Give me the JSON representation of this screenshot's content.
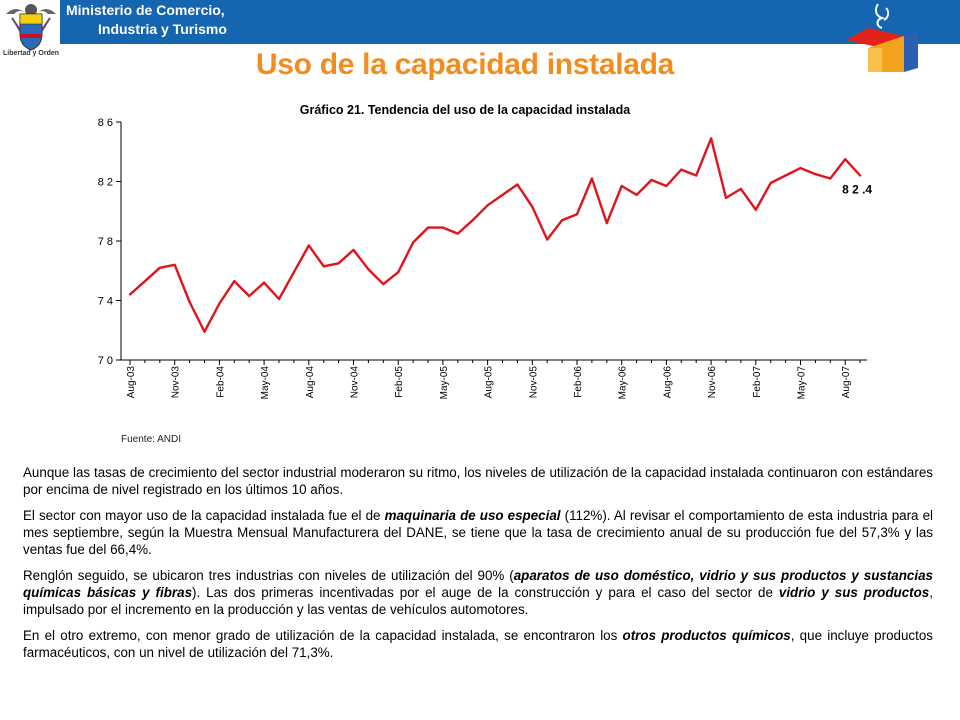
{
  "header": {
    "ministry_line1": "Ministerio de Comercio,",
    "ministry_line2": "Industria y Turismo",
    "crest_caption": "Libertad y Orden",
    "bar_color": "#1565b0"
  },
  "title": "Uso de la capacidad instalada",
  "chart": {
    "title": "Gráfico 21.  Tendencia del uso de la capacidad instalada",
    "source": "Fuente: ANDI"
  },
  "chart_data": {
    "type": "line",
    "title": "Gráfico 21.  Tendencia del uso de la capacidad instalada",
    "ylim": [
      70,
      86
    ],
    "yticks": [
      70,
      74,
      78,
      82,
      86
    ],
    "ytick_labels": [
      "7 0",
      "7 4",
      "7 8",
      "8 2",
      "8 6"
    ],
    "x_tick_labels": [
      "Aug-03",
      "Nov-03",
      "Feb-04",
      "May-04",
      "Aug-04",
      "Nov-04",
      "Feb-05",
      "May-05",
      "Aug-05",
      "Nov-05",
      "Feb-06",
      "May-06",
      "Aug-06",
      "Nov-06",
      "Feb-07",
      "May-07",
      "Aug-07"
    ],
    "x": [
      "Aug-03",
      "Sep-03",
      "Oct-03",
      "Nov-03",
      "Dec-03",
      "Jan-04",
      "Feb-04",
      "Mar-04",
      "Apr-04",
      "May-04",
      "Jun-04",
      "Jul-04",
      "Aug-04",
      "Sep-04",
      "Oct-04",
      "Nov-04",
      "Dec-04",
      "Jan-05",
      "Feb-05",
      "Mar-05",
      "Apr-05",
      "May-05",
      "Jun-05",
      "Jul-05",
      "Aug-05",
      "Sep-05",
      "Oct-05",
      "Nov-05",
      "Dec-05",
      "Jan-06",
      "Feb-06",
      "Mar-06",
      "Apr-06",
      "May-06",
      "Jun-06",
      "Jul-06",
      "Aug-06",
      "Sep-06",
      "Oct-06",
      "Nov-06",
      "Dec-06",
      "Jan-07",
      "Feb-07",
      "Mar-07",
      "Apr-07",
      "May-07",
      "Jun-07",
      "Jul-07",
      "Aug-07",
      "Sep-07"
    ],
    "series": [
      {
        "name": "",
        "color": "#e0151b",
        "values": [
          74.4,
          75.3,
          76.2,
          76.4,
          73.9,
          71.9,
          73.8,
          75.3,
          74.3,
          75.2,
          74.1,
          75.9,
          77.7,
          76.3,
          76.5,
          77.4,
          76.1,
          75.1,
          75.9,
          77.9,
          78.9,
          78.9,
          78.5,
          79.4,
          80.4,
          81.1,
          81.8,
          80.3,
          78.1,
          79.4,
          79.8,
          82.2,
          79.2,
          81.7,
          81.1,
          82.1,
          81.7,
          82.8,
          82.4,
          84.9,
          80.9,
          81.5,
          80.1,
          81.9,
          82.4,
          82.9,
          82.5,
          82.2,
          83.5,
          82.4
        ]
      }
    ],
    "last_value_label": "8 2 .4",
    "grid": false,
    "legend": "none"
  },
  "paragraphs": [
    [
      {
        "t": "Aunque las tasas de crecimiento del sector industrial moderaron su ritmo, los niveles de utilización de la capacidad instalada continuaron con estándares por encima de nivel registrado en los últimos 10 años."
      }
    ],
    [
      {
        "t": "El sector con mayor uso de la capacidad instalada fue el de "
      },
      {
        "t": "maquinaria de uso especial",
        "em": true
      },
      {
        "t": " (112%). Al revisar el comportamiento de esta industria para el mes septiembre, según la Muestra Mensual Manufacturera del DANE, se tiene que la tasa de crecimiento anual de su producción fue del 57,3% y las ventas fue del 66,4%."
      }
    ],
    [
      {
        "t": "Renglón seguido, se ubicaron tres industrias con niveles de utilización del 90% ("
      },
      {
        "t": "aparatos de uso doméstico, vidrio y sus productos y sustancias químicas básicas y fibras",
        "em": true
      },
      {
        "t": ").  Las dos primeras incentivadas por el auge de la construcción y para el caso del sector de "
      },
      {
        "t": "vidrio y sus productos",
        "em": true
      },
      {
        "t": ", impulsado por el incremento en la producción y las ventas de vehículos automotores."
      }
    ],
    [
      {
        "t": "En el otro extremo, con menor grado de utilización de la capacidad instalada, se encontraron los "
      },
      {
        "t": "otros productos químicos",
        "em": true
      },
      {
        "t": ", que incluye productos farmacéuticos, con un nivel de utilización del 71,3%."
      }
    ]
  ]
}
